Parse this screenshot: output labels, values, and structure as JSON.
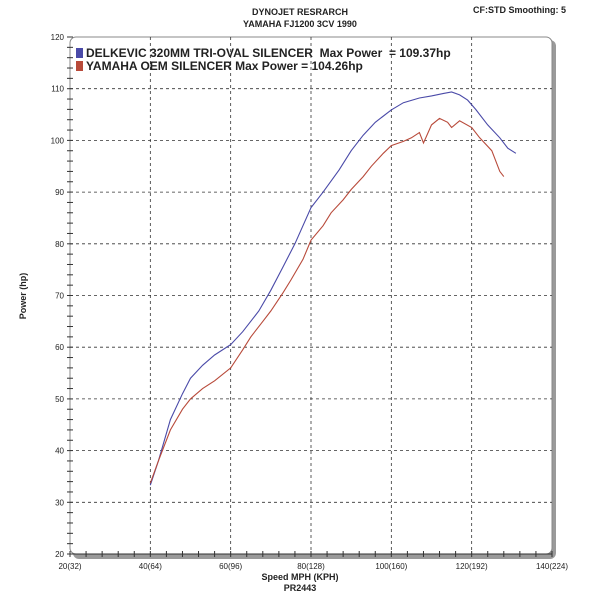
{
  "chart_data": {
    "type": "line",
    "title": "DYNOJET RESRARCH",
    "subtitle": "YAMAHA FJ1200 3CV 1990",
    "corner_note": "CF:STD Smoothing: 5",
    "xlabel": "Speed MPH (KPH)",
    "xlabel2": "PR2443",
    "ylabel": "Power (hp)",
    "xlim": [
      20,
      140
    ],
    "ylim": [
      20,
      120
    ],
    "grid": true,
    "legend_placement": "top-left",
    "x_ticks": [
      "20(32)",
      "40(64)",
      "60(96)",
      "80(128)",
      "100(160)",
      "120(192)",
      "140(224)"
    ],
    "y_ticks": [
      "20",
      "30",
      "40",
      "50",
      "60",
      "70",
      "80",
      "90",
      "100",
      "110",
      "120"
    ],
    "series": [
      {
        "name": "DELKEVIC 320MM TRI-OVAL SILENCER  Max Power  = 109.37hp",
        "color": "#4a4aa8",
        "x": [
          40,
          42,
          45,
          48,
          50,
          53,
          56,
          60,
          63,
          67,
          70,
          73,
          76,
          80,
          83,
          87,
          90,
          93,
          96,
          100,
          103,
          107,
          110,
          113,
          115,
          117,
          119,
          121,
          124,
          127,
          129,
          131
        ],
        "y": [
          33.3,
          38,
          46,
          51,
          54,
          56.5,
          58.5,
          60.5,
          63,
          67,
          71,
          75.5,
          80,
          87,
          90,
          94.3,
          98,
          101,
          103.5,
          105.9,
          107.3,
          108.2,
          108.6,
          109.1,
          109.37,
          108.8,
          107.8,
          106,
          103,
          100.5,
          98.5,
          97.5
        ]
      },
      {
        "name": "YAMAHA OEM SILENCER Max Power = 104.26hp",
        "color": "#b84a3a",
        "x": [
          40,
          42,
          45,
          48,
          50,
          53,
          56,
          60,
          63,
          65,
          68,
          70,
          73,
          75,
          78,
          80,
          83,
          85,
          88,
          90,
          93,
          95,
          98,
          100,
          103,
          105,
          107,
          108,
          110,
          112,
          114,
          115,
          117,
          120,
          122,
          125,
          127,
          128
        ],
        "y": [
          33.7,
          38,
          44,
          48,
          50,
          52,
          53.5,
          56,
          59.5,
          62,
          65,
          67,
          70.5,
          73,
          77,
          80.7,
          83.5,
          86,
          88.5,
          90.5,
          93,
          95,
          97.5,
          99,
          99.8,
          100.5,
          101.5,
          99.5,
          103,
          104.26,
          103.5,
          102.5,
          103.8,
          102.5,
          100.5,
          98,
          94,
          93
        ]
      }
    ]
  }
}
